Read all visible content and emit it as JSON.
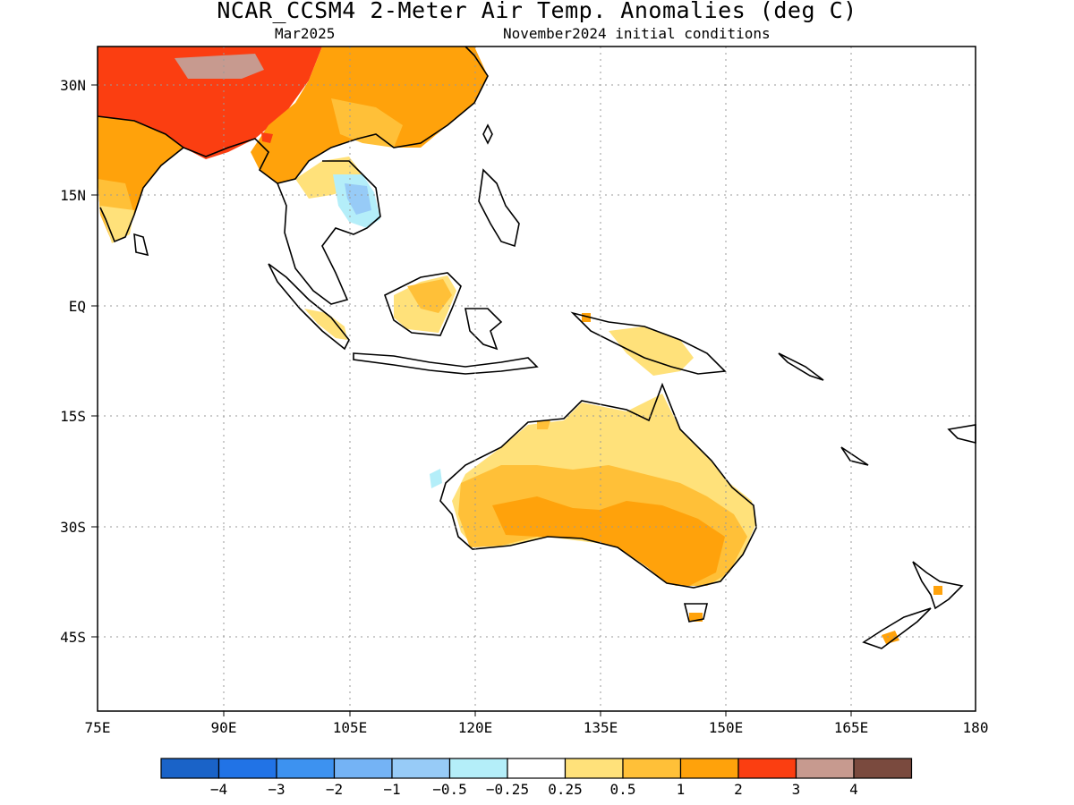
{
  "title": "NCAR_CCSM4 2-Meter Air Temp. Anomalies (deg C)",
  "subtitle_left": "Mar2025",
  "subtitle_right": "November2024 initial conditions",
  "lat_labels": [
    "30N",
    "15N",
    "EQ",
    "15S",
    "30S",
    "45S"
  ],
  "lon_labels": [
    "75E",
    "90E",
    "105E",
    "120E",
    "135E",
    "150E",
    "165E",
    "180"
  ],
  "colorbar": {
    "colors": [
      "#1a63c8",
      "#2173e6",
      "#3d92f0",
      "#74b3f5",
      "#97cbf7",
      "#b4eef9",
      "#ffffff",
      "#ffe17a",
      "#ffc038",
      "#ffa20b",
      "#fb3e11",
      "#c79a8f",
      "#7a4a3e"
    ],
    "labels": [
      "−4",
      "−3",
      "−2",
      "−1",
      "−0.5",
      "−0.25",
      "0.25",
      "0.5",
      "1",
      "2",
      "3",
      "4"
    ]
  }
}
